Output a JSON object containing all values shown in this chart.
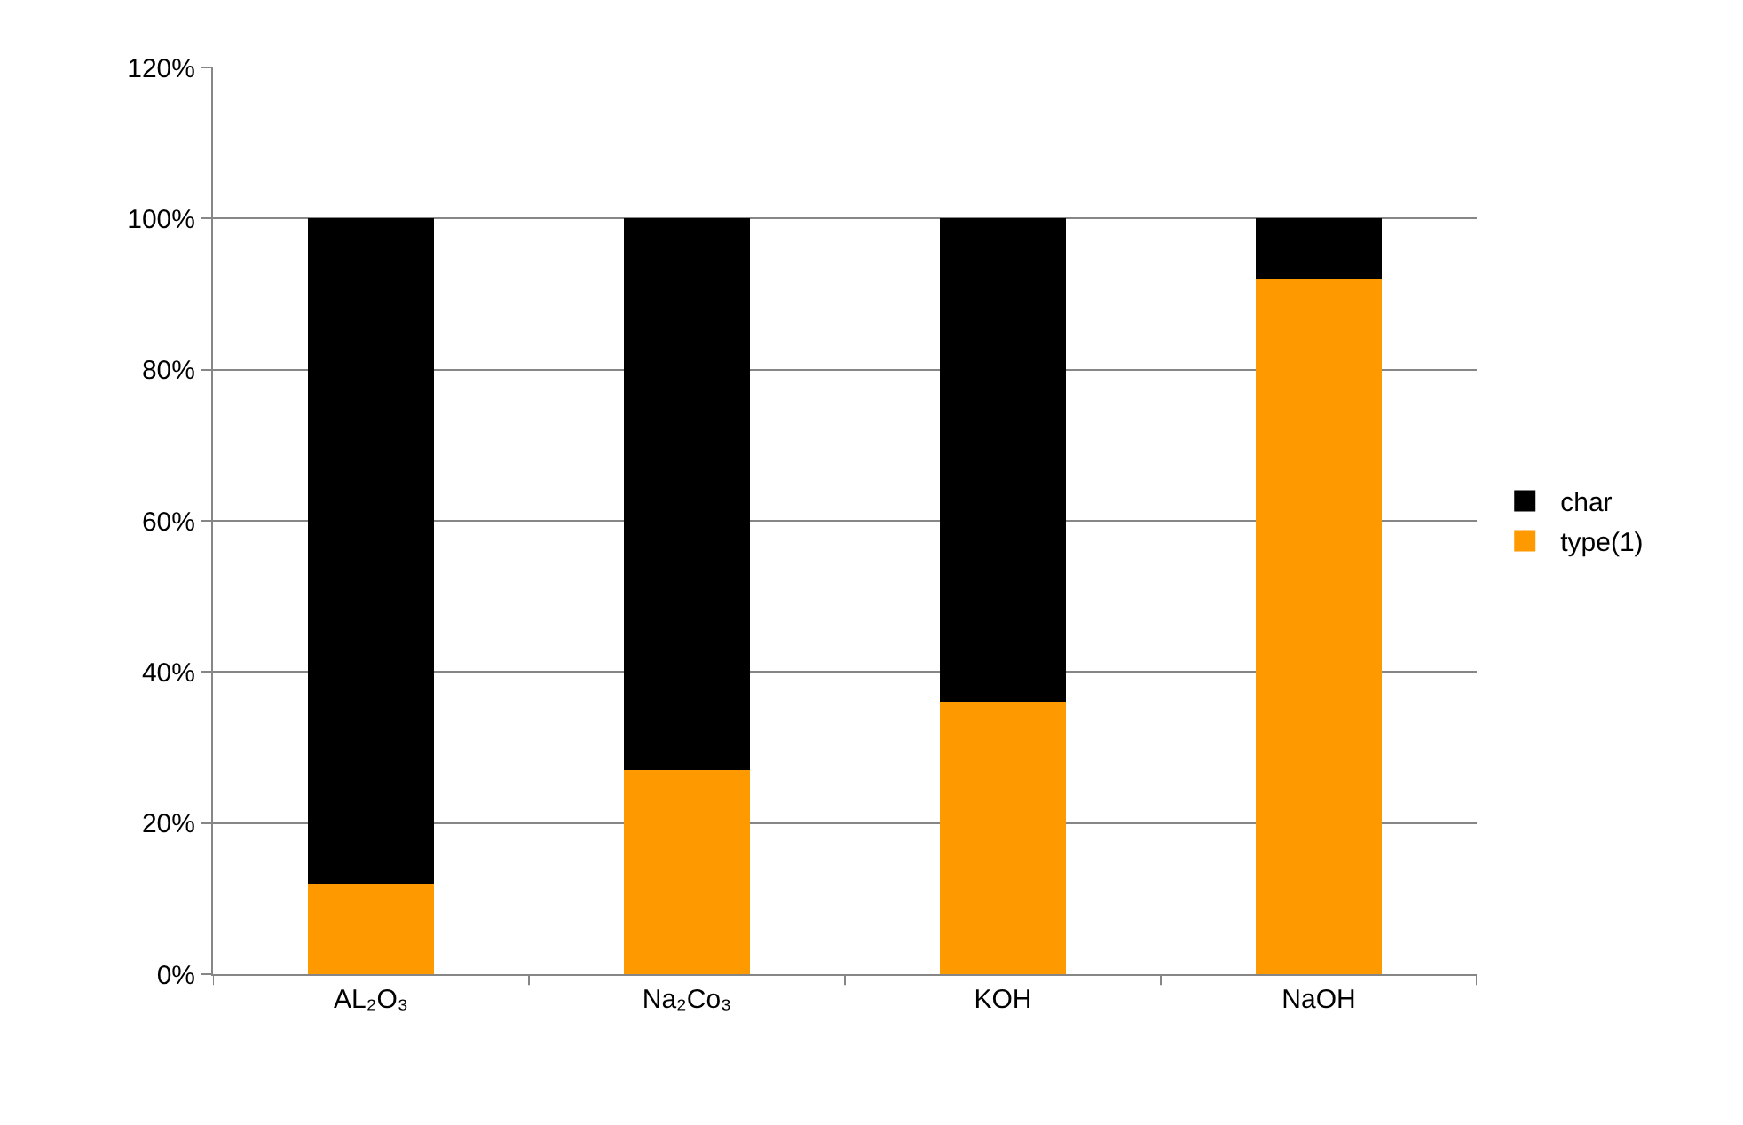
{
  "chart_data": {
    "type": "bar",
    "stacked": true,
    "categories": [
      "AL₂O₃",
      "Na₂Co₃",
      "KOH",
      "NaOH"
    ],
    "series": [
      {
        "name": "type(1)",
        "color": "#ff9900",
        "values": [
          12,
          27,
          36,
          92
        ]
      },
      {
        "name": "char",
        "color": "#000000",
        "values": [
          88,
          73,
          64,
          8
        ]
      }
    ],
    "ylim": [
      0,
      120
    ],
    "yticks": [
      {
        "value": 0,
        "label": "0%"
      },
      {
        "value": 20,
        "label": "20%"
      },
      {
        "value": 40,
        "label": "40%"
      },
      {
        "value": 60,
        "label": "60%"
      },
      {
        "value": 80,
        "label": "80%"
      },
      {
        "value": 100,
        "label": "100%"
      },
      {
        "value": 120,
        "label": "120%"
      }
    ],
    "grid": "y",
    "legend": "right"
  }
}
